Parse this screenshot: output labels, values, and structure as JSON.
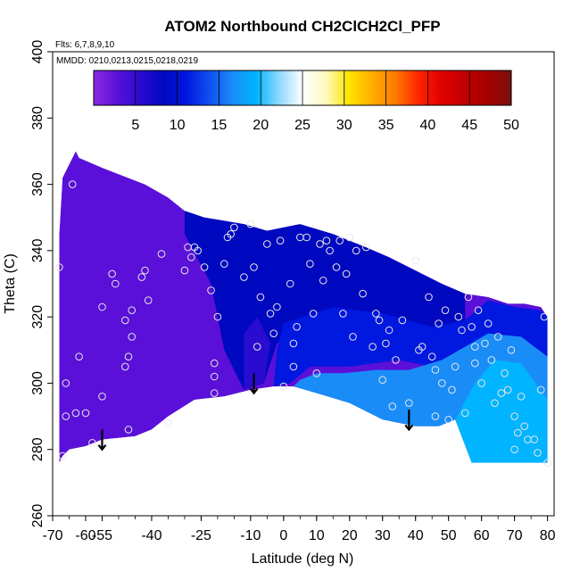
{
  "chart_data": {
    "type": "heatmap",
    "title": "ATOM2 Northbound CH2ClCH2Cl_PFP",
    "flights_label": "Flts: 6,7,8,9,10",
    "dates_label": "MMDD: 0210,0213,0215,0218,0219",
    "xlabel": "Latitude (deg N)",
    "ylabel": "Theta (C)",
    "xlim": [
      -70,
      82
    ],
    "ylim": [
      260,
      400
    ],
    "x_ticks": [
      "-70",
      "-60",
      "-55",
      "-40",
      "-25",
      "-10",
      "0",
      "10",
      "20",
      "30",
      "40",
      "50",
      "60",
      "70",
      "80"
    ],
    "x_tick_values": [
      -70,
      -60,
      -55,
      -40,
      -25,
      -10,
      0,
      10,
      20,
      30,
      40,
      50,
      60,
      70,
      80
    ],
    "y_ticks": [
      "260",
      "280",
      "300",
      "320",
      "340",
      "360",
      "380",
      "400"
    ],
    "y_tick_values": [
      260,
      280,
      300,
      320,
      340,
      360,
      380,
      400
    ],
    "colorbar": {
      "min": 0,
      "max": 50,
      "ticks": [
        "5",
        "10",
        "15",
        "20",
        "25",
        "30",
        "35",
        "40",
        "45",
        "50"
      ],
      "tick_values": [
        5,
        10,
        15,
        20,
        25,
        30,
        35,
        40,
        45,
        50
      ],
      "colors": [
        "#8a2be2",
        "#5a10d8",
        "#2a0bd0",
        "#0008c0",
        "#0018e0",
        "#1050f0",
        "#1a8cf8",
        "#00b4ff",
        "#8fd8ff",
        "#ffffff",
        "#fffac0",
        "#ffe400",
        "#ffae00",
        "#ff7a00",
        "#ff2400",
        "#e00000",
        "#c00000",
        "#a50000",
        "#7a1010"
      ]
    },
    "field": {
      "upper_boundary": [
        [
          -68,
          345
        ],
        [
          -67,
          362
        ],
        [
          -65,
          366
        ],
        [
          -63,
          370
        ],
        [
          -62,
          368
        ],
        [
          -55,
          365
        ],
        [
          -42,
          360
        ],
        [
          -35,
          356
        ],
        [
          -30,
          352
        ],
        [
          -24,
          350
        ],
        [
          -18,
          349
        ],
        [
          -12,
          348
        ],
        [
          -5,
          346
        ],
        [
          5,
          348
        ],
        [
          15,
          345
        ],
        [
          25,
          341
        ],
        [
          32,
          338
        ],
        [
          40,
          334
        ],
        [
          48,
          330
        ],
        [
          55,
          327
        ],
        [
          62,
          326
        ],
        [
          68,
          324
        ],
        [
          73,
          324
        ],
        [
          78,
          323
        ],
        [
          80,
          320
        ]
      ],
      "lower_boundary": [
        [
          80,
          276
        ],
        [
          70,
          276
        ],
        [
          62,
          276
        ],
        [
          57,
          276
        ],
        [
          52,
          289
        ],
        [
          47,
          287
        ],
        [
          40,
          287
        ],
        [
          30,
          289
        ],
        [
          20,
          294
        ],
        [
          10,
          297
        ],
        [
          3,
          299
        ],
        [
          -3,
          299
        ],
        [
          -10,
          298
        ],
        [
          -18,
          296
        ],
        [
          -27,
          295
        ],
        [
          -35,
          290
        ],
        [
          -40,
          286
        ],
        [
          -45,
          284
        ],
        [
          -55,
          283
        ],
        [
          -60,
          281
        ],
        [
          -65,
          280
        ],
        [
          -67,
          278
        ],
        [
          -68,
          276
        ]
      ],
      "zones": [
        {
          "value": 9,
          "polygon": [
            [
              -30,
              352
            ],
            [
              -12,
              348
            ],
            [
              5,
              348
            ],
            [
              15,
              345
            ],
            [
              25,
              341
            ],
            [
              32,
              338
            ],
            [
              40,
              334
            ],
            [
              48,
              330
            ],
            [
              55,
              327
            ],
            [
              55,
              318
            ],
            [
              45,
              316
            ],
            [
              30,
              320
            ],
            [
              15,
              322
            ],
            [
              5,
              318
            ],
            [
              -2,
              312
            ],
            [
              -6,
              300
            ],
            [
              -12,
              298
            ],
            [
              -18,
              310
            ],
            [
              -22,
              330
            ],
            [
              -30,
              345
            ]
          ]
        },
        {
          "value": 6,
          "polygon": [
            [
              -12,
              298
            ],
            [
              -6,
              300
            ],
            [
              -4,
              312
            ],
            [
              -8,
              320
            ],
            [
              -12,
              315
            ]
          ]
        },
        {
          "value": 12,
          "polygon": [
            [
              0,
              318
            ],
            [
              15,
              323
            ],
            [
              30,
              321
            ],
            [
              45,
              317
            ],
            [
              55,
              319
            ],
            [
              62,
              325
            ],
            [
              70,
              323
            ],
            [
              78,
              322
            ],
            [
              80,
              320
            ],
            [
              80,
              305
            ],
            [
              70,
              305
            ],
            [
              58,
              303
            ],
            [
              45,
              305
            ],
            [
              35,
              307
            ],
            [
              20,
              305
            ],
            [
              8,
              305
            ],
            [
              2,
              300
            ],
            [
              -3,
              299
            ],
            [
              -2,
              310
            ]
          ]
        },
        {
          "value": 16,
          "polygon": [
            [
              3,
              299
            ],
            [
              10,
              297
            ],
            [
              20,
              294
            ],
            [
              30,
              289
            ],
            [
              40,
              287
            ],
            [
              47,
              287
            ],
            [
              52,
              289
            ],
            [
              57,
              276
            ],
            [
              62,
              276
            ],
            [
              70,
              276
            ],
            [
              80,
              276
            ],
            [
              80,
              308
            ],
            [
              72,
              314
            ],
            [
              62,
              315
            ],
            [
              55,
              311
            ],
            [
              48,
              307
            ],
            [
              38,
              304
            ],
            [
              28,
              304
            ],
            [
              18,
              303
            ],
            [
              10,
              303
            ],
            [
              5,
              301
            ]
          ]
        },
        {
          "value": 19,
          "polygon": [
            [
              57,
              276
            ],
            [
              62,
              276
            ],
            [
              70,
              276
            ],
            [
              80,
              276
            ],
            [
              80,
              295
            ],
            [
              72,
              306
            ],
            [
              64,
              307
            ],
            [
              58,
              300
            ],
            [
              52,
              289
            ]
          ]
        }
      ]
    },
    "samples": [
      [
        -68,
        335
      ],
      [
        -67,
        278
      ],
      [
        -66,
        300
      ],
      [
        -66,
        290
      ],
      [
        -64,
        360
      ],
      [
        -63,
        291
      ],
      [
        -62,
        308
      ],
      [
        -60,
        291
      ],
      [
        -58,
        282
      ],
      [
        -55,
        323
      ],
      [
        -55,
        296
      ],
      [
        -52,
        333
      ],
      [
        -51,
        330
      ],
      [
        -48,
        319
      ],
      [
        -48,
        305
      ],
      [
        -47,
        308
      ],
      [
        -47,
        286
      ],
      [
        -46,
        322
      ],
      [
        -46,
        314
      ],
      [
        -43,
        332
      ],
      [
        -42,
        334
      ],
      [
        -41,
        325
      ],
      [
        -37,
        339
      ],
      [
        -35,
        288
      ],
      [
        -30,
        334
      ],
      [
        -29,
        341
      ],
      [
        -28,
        338
      ],
      [
        -27,
        341
      ],
      [
        -26,
        340
      ],
      [
        -24,
        335
      ],
      [
        -22,
        328
      ],
      [
        -21,
        306
      ],
      [
        -21,
        302
      ],
      [
        -21,
        297
      ],
      [
        -20,
        320
      ],
      [
        -18,
        336
      ],
      [
        -17,
        344
      ],
      [
        -16,
        345
      ],
      [
        -15,
        347
      ],
      [
        -12,
        332
      ],
      [
        -10,
        348
      ],
      [
        -9,
        335
      ],
      [
        -8,
        311
      ],
      [
        -7,
        326
      ],
      [
        -5,
        342
      ],
      [
        -4,
        321
      ],
      [
        -3,
        315
      ],
      [
        -2,
        323
      ],
      [
        -1,
        343
      ],
      [
        0,
        299
      ],
      [
        2,
        330
      ],
      [
        3,
        312
      ],
      [
        3,
        305
      ],
      [
        4,
        317
      ],
      [
        5,
        344
      ],
      [
        7,
        344
      ],
      [
        8,
        336
      ],
      [
        9,
        321
      ],
      [
        10,
        303
      ],
      [
        11,
        342
      ],
      [
        12,
        331
      ],
      [
        13,
        343
      ],
      [
        14,
        340
      ],
      [
        16,
        335
      ],
      [
        17,
        343
      ],
      [
        18,
        321
      ],
      [
        19,
        333
      ],
      [
        20,
        344
      ],
      [
        21,
        314
      ],
      [
        22,
        340
      ],
      [
        24,
        327
      ],
      [
        25,
        341
      ],
      [
        27,
        311
      ],
      [
        28,
        321
      ],
      [
        29,
        319
      ],
      [
        30,
        301
      ],
      [
        31,
        312
      ],
      [
        32,
        316
      ],
      [
        33,
        293
      ],
      [
        34,
        307
      ],
      [
        36,
        319
      ],
      [
        38,
        294
      ],
      [
        40,
        337
      ],
      [
        41,
        310
      ],
      [
        42,
        311
      ],
      [
        44,
        326
      ],
      [
        45,
        308
      ],
      [
        46,
        304
      ],
      [
        46,
        290
      ],
      [
        47,
        318
      ],
      [
        48,
        300
      ],
      [
        49,
        322
      ],
      [
        50,
        289
      ],
      [
        51,
        298
      ],
      [
        52,
        305
      ],
      [
        53,
        320
      ],
      [
        54,
        316
      ],
      [
        55,
        291
      ],
      [
        56,
        326
      ],
      [
        57,
        317
      ],
      [
        58,
        311
      ],
      [
        58,
        306
      ],
      [
        59,
        322
      ],
      [
        60,
        300
      ],
      [
        61,
        312
      ],
      [
        62,
        318
      ],
      [
        63,
        307
      ],
      [
        64,
        294
      ],
      [
        65,
        314
      ],
      [
        66,
        297
      ],
      [
        67,
        303
      ],
      [
        68,
        298
      ],
      [
        69,
        310
      ],
      [
        70,
        290
      ],
      [
        70,
        280
      ],
      [
        71,
        285
      ],
      [
        72,
        296
      ],
      [
        73,
        287
      ],
      [
        74,
        283
      ],
      [
        76,
        283
      ],
      [
        77,
        279
      ],
      [
        78,
        298
      ],
      [
        79,
        320
      ],
      [
        80,
        276
      ]
    ],
    "arrows": [
      {
        "x": -55,
        "y_top": 286,
        "y_bottom": 280
      },
      {
        "x": -9,
        "y_top": 303,
        "y_bottom": 297
      },
      {
        "x": 38,
        "y_top": 292,
        "y_bottom": 286
      }
    ]
  }
}
